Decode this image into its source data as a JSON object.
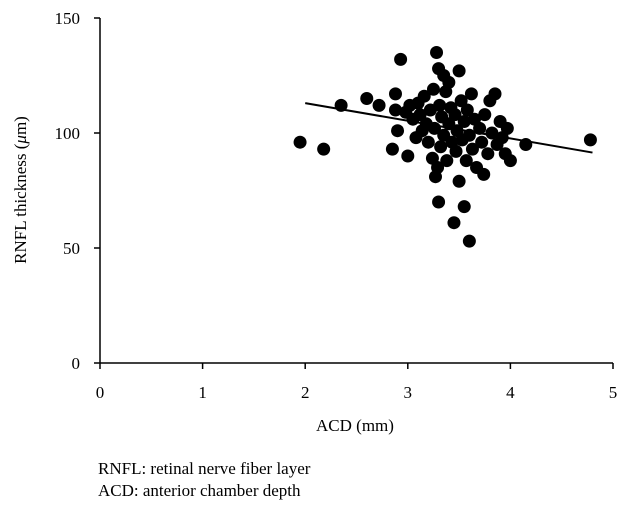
{
  "chart_data": {
    "type": "scatter",
    "title": "",
    "xlabel": "ACD (mm)",
    "ylabel_prefix": "RNFL thickness (",
    "ylabel_unit_italic": "μ",
    "ylabel_suffix": "m)",
    "xlim": [
      0,
      5
    ],
    "ylim": [
      0,
      150
    ],
    "x_ticks": [
      "0",
      "1",
      "2",
      "3",
      "4",
      "5"
    ],
    "y_ticks": [
      "0",
      "50",
      "100",
      "150"
    ],
    "grid": false,
    "legend": "none",
    "marker_color": "#000000",
    "trend_line": {
      "x": [
        2.0,
        4.8
      ],
      "y": [
        113,
        91.5
      ]
    },
    "points": [
      {
        "x": 1.95,
        "y": 96
      },
      {
        "x": 2.18,
        "y": 93
      },
      {
        "x": 2.35,
        "y": 112
      },
      {
        "x": 2.6,
        "y": 115
      },
      {
        "x": 2.72,
        "y": 112
      },
      {
        "x": 2.85,
        "y": 93
      },
      {
        "x": 2.88,
        "y": 117
      },
      {
        "x": 2.88,
        "y": 110
      },
      {
        "x": 2.9,
        "y": 101
      },
      {
        "x": 2.93,
        "y": 132
      },
      {
        "x": 2.98,
        "y": 109
      },
      {
        "x": 3.0,
        "y": 90
      },
      {
        "x": 3.02,
        "y": 112
      },
      {
        "x": 3.05,
        "y": 106
      },
      {
        "x": 3.08,
        "y": 98
      },
      {
        "x": 3.1,
        "y": 113
      },
      {
        "x": 3.12,
        "y": 108
      },
      {
        "x": 3.14,
        "y": 101
      },
      {
        "x": 3.16,
        "y": 116
      },
      {
        "x": 3.18,
        "y": 104
      },
      {
        "x": 3.2,
        "y": 96
      },
      {
        "x": 3.22,
        "y": 110
      },
      {
        "x": 3.24,
        "y": 89
      },
      {
        "x": 3.25,
        "y": 119
      },
      {
        "x": 3.26,
        "y": 102
      },
      {
        "x": 3.27,
        "y": 81
      },
      {
        "x": 3.28,
        "y": 135
      },
      {
        "x": 3.29,
        "y": 85
      },
      {
        "x": 3.3,
        "y": 70
      },
      {
        "x": 3.3,
        "y": 128
      },
      {
        "x": 3.31,
        "y": 112
      },
      {
        "x": 3.32,
        "y": 94
      },
      {
        "x": 3.33,
        "y": 107
      },
      {
        "x": 3.35,
        "y": 125
      },
      {
        "x": 3.35,
        "y": 99
      },
      {
        "x": 3.37,
        "y": 118
      },
      {
        "x": 3.38,
        "y": 88
      },
      {
        "x": 3.4,
        "y": 122
      },
      {
        "x": 3.4,
        "y": 104
      },
      {
        "x": 3.42,
        "y": 111
      },
      {
        "x": 3.43,
        "y": 96
      },
      {
        "x": 3.45,
        "y": 61
      },
      {
        "x": 3.46,
        "y": 108
      },
      {
        "x": 3.47,
        "y": 92
      },
      {
        "x": 3.48,
        "y": 101
      },
      {
        "x": 3.5,
        "y": 127
      },
      {
        "x": 3.5,
        "y": 79
      },
      {
        "x": 3.52,
        "y": 114
      },
      {
        "x": 3.53,
        "y": 97
      },
      {
        "x": 3.55,
        "y": 68
      },
      {
        "x": 3.55,
        "y": 105
      },
      {
        "x": 3.57,
        "y": 88
      },
      {
        "x": 3.58,
        "y": 110
      },
      {
        "x": 3.6,
        "y": 53
      },
      {
        "x": 3.6,
        "y": 99
      },
      {
        "x": 3.62,
        "y": 117
      },
      {
        "x": 3.63,
        "y": 93
      },
      {
        "x": 3.65,
        "y": 106
      },
      {
        "x": 3.67,
        "y": 85
      },
      {
        "x": 3.7,
        "y": 102
      },
      {
        "x": 3.72,
        "y": 96
      },
      {
        "x": 3.74,
        "y": 82
      },
      {
        "x": 3.75,
        "y": 108
      },
      {
        "x": 3.78,
        "y": 91
      },
      {
        "x": 3.8,
        "y": 114
      },
      {
        "x": 3.82,
        "y": 100
      },
      {
        "x": 3.85,
        "y": 117
      },
      {
        "x": 3.87,
        "y": 95
      },
      {
        "x": 3.9,
        "y": 105
      },
      {
        "x": 3.92,
        "y": 98
      },
      {
        "x": 3.95,
        "y": 91
      },
      {
        "x": 3.97,
        "y": 102
      },
      {
        "x": 4.0,
        "y": 88
      },
      {
        "x": 4.15,
        "y": 95
      },
      {
        "x": 4.78,
        "y": 97
      }
    ]
  },
  "footnotes": {
    "line1": "RNFL: retinal nerve fiber layer",
    "line2": "ACD: anterior chamber depth"
  }
}
